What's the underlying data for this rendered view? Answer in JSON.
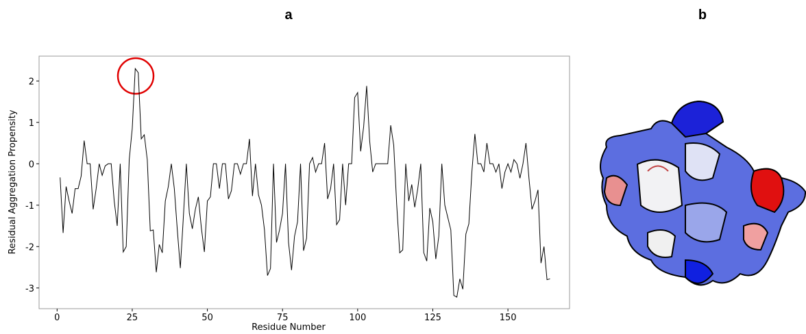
{
  "panel_labels": [
    "a",
    "b"
  ],
  "chart_data": {
    "type": "line",
    "xlabel": "Residue Number",
    "ylabel": "Residual Aggregation Propensity",
    "xlim": [
      -6,
      170.5
    ],
    "ylim": [
      -3.5,
      2.6
    ],
    "xticks": [
      0,
      25,
      50,
      75,
      100,
      125,
      150
    ],
    "yticks": [
      -3,
      -2,
      -1,
      0,
      1,
      2
    ],
    "grid": false,
    "series": [
      {
        "color": "#000000",
        "x": [
          1,
          2,
          3,
          4,
          5,
          6,
          7,
          8,
          9,
          10,
          11,
          12,
          13,
          14,
          15,
          16,
          17,
          18,
          19,
          20,
          21,
          22,
          23,
          24,
          25,
          26,
          27,
          28,
          29,
          30,
          31,
          32,
          33,
          34,
          35,
          36,
          37,
          38,
          39,
          40,
          41,
          42,
          43,
          44,
          45,
          46,
          47,
          48,
          49,
          50,
          51,
          52,
          53,
          54,
          55,
          56,
          57,
          58,
          59,
          60,
          61,
          62,
          63,
          64,
          65,
          66,
          67,
          68,
          69,
          70,
          71,
          72,
          73,
          74,
          75,
          76,
          77,
          78,
          79,
          80,
          81,
          82,
          83,
          84,
          85,
          86,
          87,
          88,
          89,
          90,
          91,
          92,
          93,
          94,
          95,
          96,
          97,
          98,
          99,
          100,
          101,
          102,
          103,
          104,
          105,
          106,
          107,
          108,
          109,
          110,
          111,
          112,
          113,
          114,
          115,
          116,
          117,
          118,
          119,
          120,
          121,
          122,
          123,
          124,
          125,
          126,
          127,
          128,
          129,
          130,
          131,
          132,
          133,
          134,
          135,
          136,
          137,
          138,
          139,
          140,
          141,
          142,
          143,
          144,
          145,
          146,
          147,
          148,
          149,
          150,
          151,
          152,
          153,
          154,
          155,
          156,
          157,
          158,
          159,
          160,
          161,
          162,
          163,
          164
        ],
        "values": [
          -0.33,
          -1.67,
          -0.55,
          -0.9,
          -1.2,
          -0.6,
          -0.6,
          -0.3,
          0.56,
          0,
          0,
          -1.1,
          -0.6,
          0,
          -0.28,
          -0.05,
          0,
          0,
          -0.9,
          -1.5,
          0,
          -2.13,
          -2.0,
          0.1,
          0.85,
          2.3,
          2.2,
          0.6,
          0.7,
          0.1,
          -1.62,
          -1.6,
          -2.62,
          -1.95,
          -2.15,
          -0.9,
          -0.55,
          0,
          -0.6,
          -1.6,
          -2.52,
          -1.3,
          0,
          -1.2,
          -1.57,
          -1.1,
          -0.8,
          -1.55,
          -2.13,
          -0.9,
          -0.8,
          0,
          0,
          -0.6,
          0,
          0,
          -0.85,
          -0.65,
          0,
          0,
          -0.25,
          0,
          0,
          0.6,
          -0.78,
          0,
          -0.75,
          -1.0,
          -1.6,
          -2.7,
          -2.53,
          0,
          -1.9,
          -1.6,
          -1.2,
          0,
          -1.9,
          -2.57,
          -1.75,
          -1.4,
          0,
          -2.1,
          -1.8,
          0,
          0.15,
          -0.2,
          0,
          0,
          0.5,
          -0.85,
          -0.6,
          0,
          -1.47,
          -1.35,
          0,
          -1.0,
          0,
          0,
          1.6,
          1.72,
          0.3,
          0.9,
          1.88,
          0.55,
          -0.2,
          0,
          0,
          0,
          0,
          0,
          0.93,
          0.45,
          -1.0,
          -2.15,
          -2.08,
          0,
          -0.9,
          -0.5,
          -1.05,
          -0.6,
          0,
          -2.15,
          -2.35,
          -1.07,
          -1.4,
          -2.3,
          -1.75,
          0,
          -1.0,
          -1.3,
          -1.6,
          -3.18,
          -3.22,
          -2.78,
          -3.03,
          -1.7,
          -1.45,
          -0.2,
          0.72,
          0,
          0,
          -0.2,
          0.5,
          0,
          0,
          -0.2,
          0,
          -0.6,
          -0.2,
          0,
          -0.2,
          0.1,
          0,
          -0.35,
          0,
          0.5,
          -0.35,
          -1.1,
          -0.9,
          -0.63,
          -2.4,
          -2.0,
          -2.8,
          -2.78
        ]
      }
    ]
  }
}
